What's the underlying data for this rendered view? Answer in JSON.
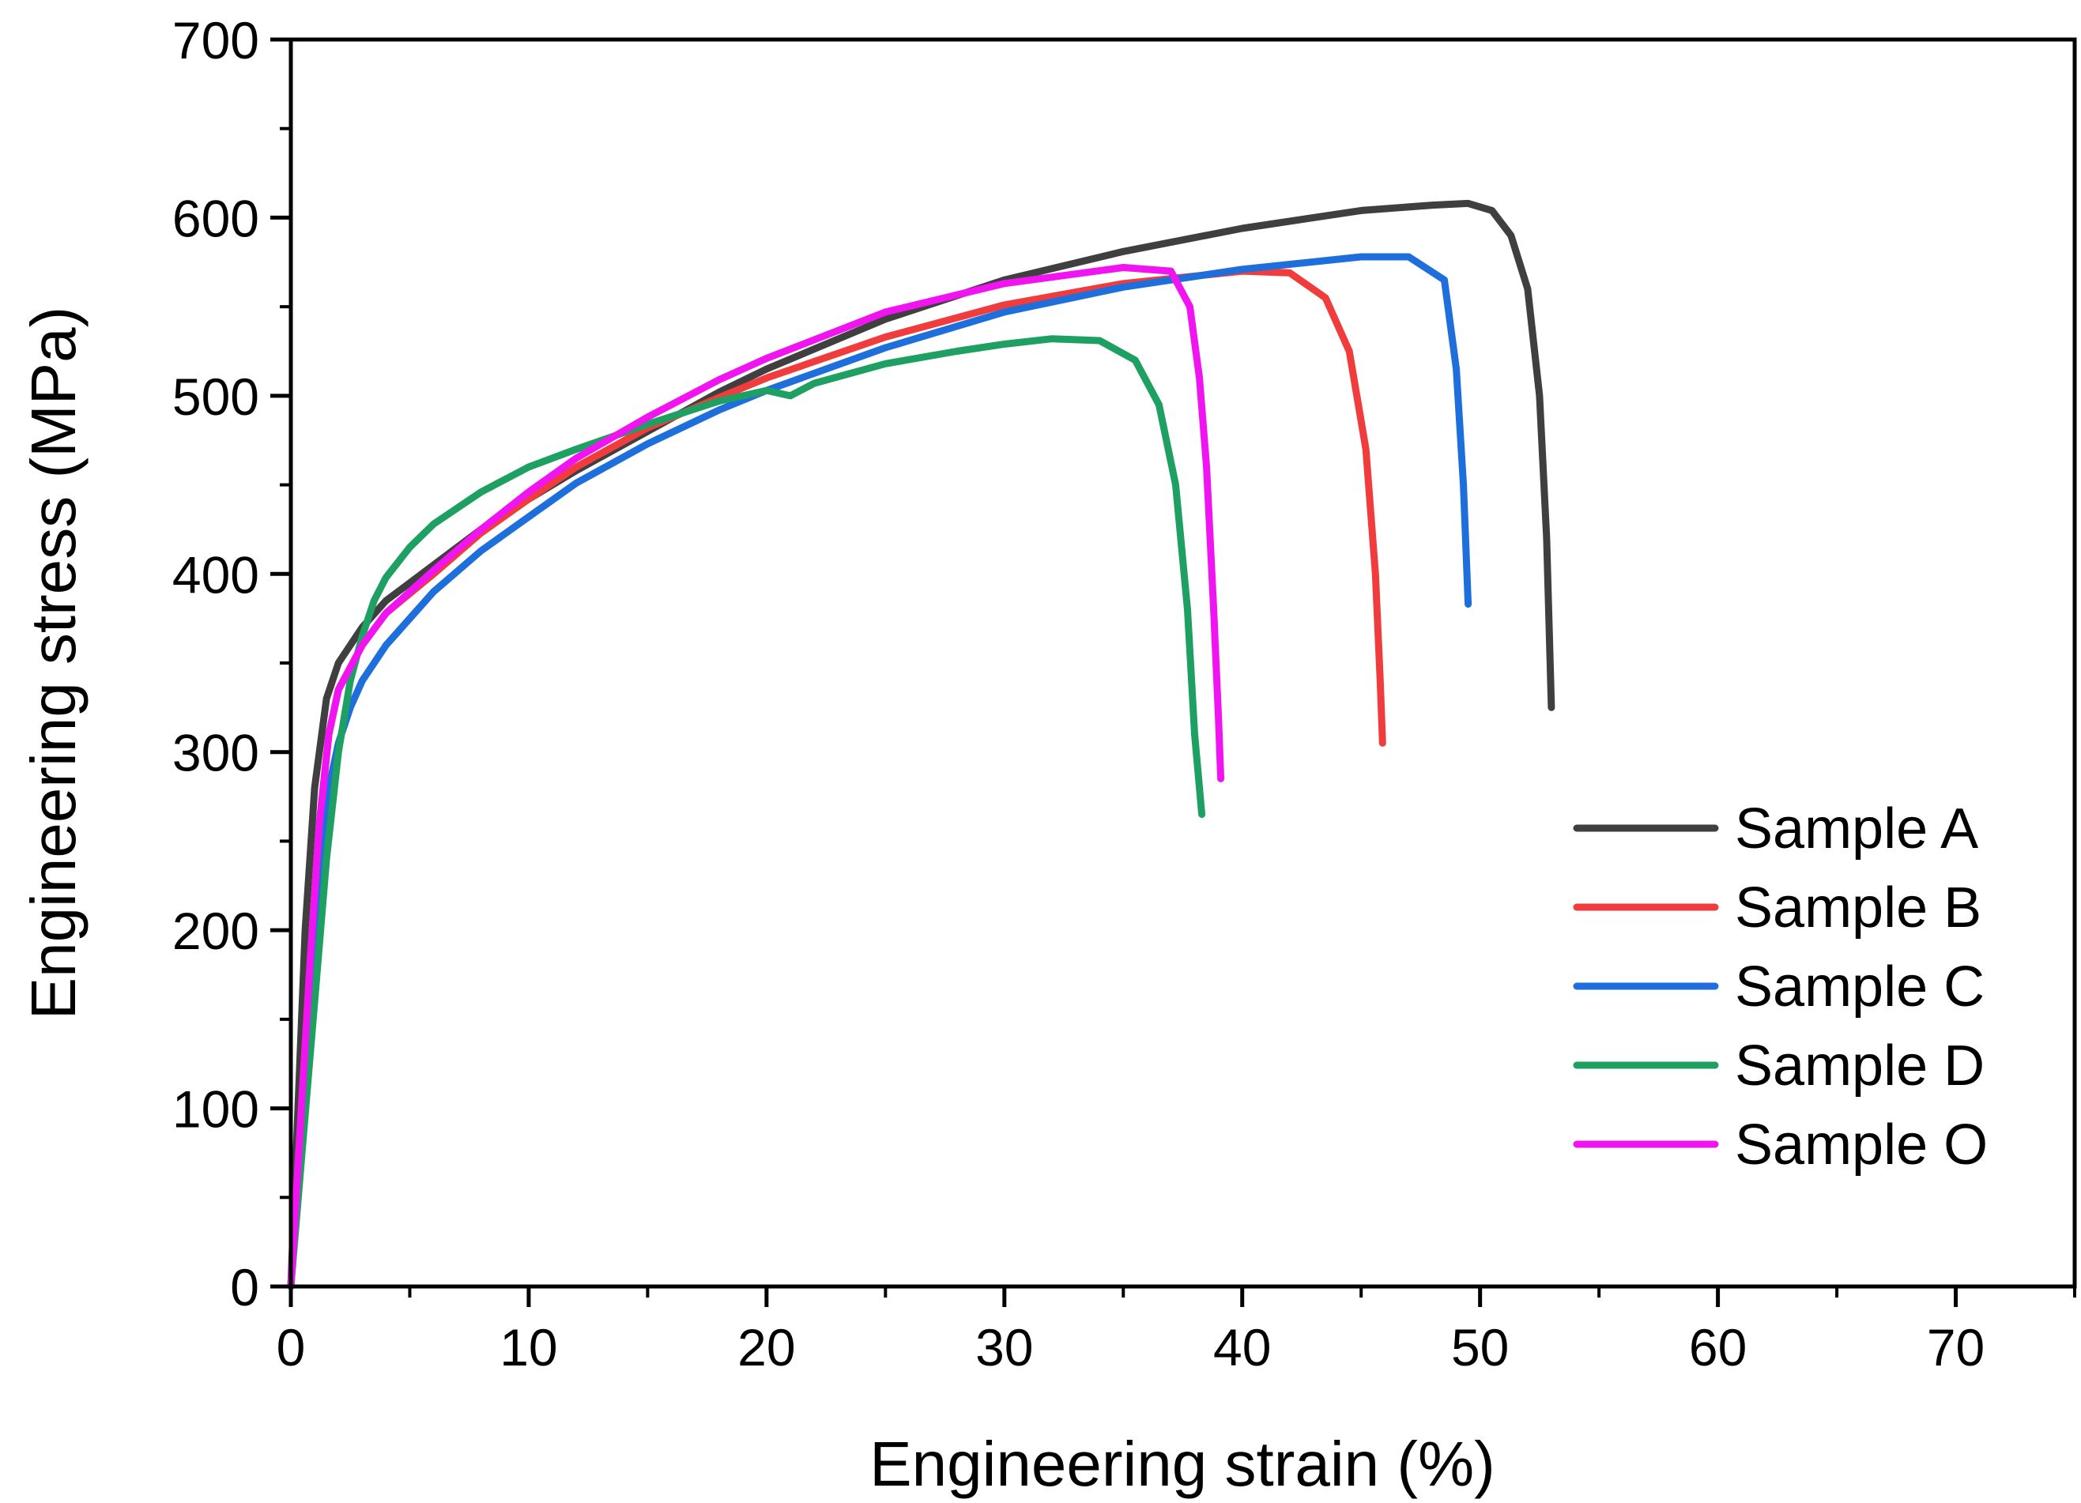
{
  "chart_data": {
    "type": "line",
    "title": "",
    "xlabel": "Engineering strain (%)",
    "ylabel": "Engineering stress (MPa)",
    "xlim": [
      0,
      75
    ],
    "ylim": [
      0,
      700
    ],
    "xticks": [
      0,
      10,
      20,
      30,
      40,
      50,
      60,
      70
    ],
    "yticks": [
      0,
      100,
      200,
      300,
      400,
      500,
      600,
      700
    ],
    "grid": false,
    "legend_position": "bottom-right",
    "series": [
      {
        "name": "Sample A",
        "color": "#3f3f3f",
        "x": [
          0,
          0.3,
          0.6,
          1.0,
          1.5,
          2.0,
          3.0,
          4.0,
          5.0,
          6.0,
          8.0,
          10.0,
          12.0,
          15.0,
          18.0,
          20.0,
          25.0,
          30.0,
          35.0,
          40.0,
          45.0,
          48.0,
          49.5,
          50.5,
          51.3,
          52.0,
          52.5,
          52.8,
          53.0
        ],
        "y": [
          0,
          100,
          200,
          280,
          330,
          350,
          370,
          385,
          395,
          405,
          425,
          442,
          458,
          480,
          502,
          515,
          543,
          565,
          581,
          594,
          604,
          607,
          608,
          604,
          590,
          560,
          500,
          420,
          325
        ]
      },
      {
        "name": "Sample B",
        "color": "#f03c3c",
        "x": [
          0,
          0.4,
          0.8,
          1.2,
          1.6,
          2.0,
          3.0,
          4.0,
          6.0,
          8.0,
          10.0,
          12.0,
          15.0,
          18.0,
          20.0,
          25.0,
          30.0,
          35.0,
          40.0,
          42.0,
          43.5,
          44.5,
          45.2,
          45.6,
          45.8,
          45.9
        ],
        "y": [
          0,
          90,
          180,
          260,
          310,
          335,
          360,
          378,
          400,
          423,
          442,
          460,
          482,
          499,
          510,
          533,
          551,
          563,
          570,
          569,
          555,
          525,
          470,
          400,
          340,
          305
        ]
      },
      {
        "name": "Sample C",
        "color": "#1e6fdc",
        "x": [
          0,
          0.4,
          0.8,
          1.2,
          1.6,
          2.0,
          2.5,
          3.0,
          4.0,
          6.0,
          8.0,
          10.0,
          12.0,
          15.0,
          18.0,
          20.0,
          25.0,
          30.0,
          35.0,
          40.0,
          45.0,
          47.0,
          48.5,
          49.0,
          49.3,
          49.5
        ],
        "y": [
          0,
          80,
          160,
          230,
          280,
          305,
          325,
          340,
          360,
          390,
          413,
          432,
          451,
          473,
          492,
          503,
          527,
          547,
          561,
          571,
          578,
          578,
          565,
          515,
          450,
          383
        ]
      },
      {
        "name": "Sample D",
        "color": "#1ea062",
        "x": [
          0,
          0.5,
          1.0,
          1.5,
          2.0,
          2.5,
          3.0,
          3.5,
          4.0,
          5.0,
          6.0,
          8.0,
          10.0,
          12.0,
          15.0,
          18.0,
          20.0,
          21.0,
          22.0,
          25.0,
          28.0,
          30.0,
          32.0,
          34.0,
          35.5,
          36.5,
          37.2,
          37.7,
          38.0,
          38.2,
          38.3
        ],
        "y": [
          0,
          80,
          160,
          240,
          300,
          340,
          365,
          385,
          398,
          415,
          428,
          446,
          460,
          470,
          484,
          497,
          503,
          500,
          507,
          518,
          525,
          529,
          532,
          531,
          520,
          495,
          450,
          380,
          310,
          280,
          265
        ]
      },
      {
        "name": "Sample O",
        "color": "#f014f0",
        "x": [
          0,
          0.4,
          0.8,
          1.2,
          1.6,
          2.0,
          3.0,
          4.0,
          6.0,
          8.0,
          10.0,
          12.0,
          15.0,
          18.0,
          20.0,
          25.0,
          30.0,
          35.0,
          37.0,
          37.8,
          38.2,
          38.5,
          38.8,
          39.0,
          39.1
        ],
        "y": [
          0,
          90,
          180,
          260,
          310,
          335,
          360,
          378,
          402,
          425,
          446,
          465,
          488,
          509,
          521,
          547,
          563,
          572,
          570,
          550,
          510,
          460,
          380,
          320,
          285
        ]
      }
    ]
  }
}
